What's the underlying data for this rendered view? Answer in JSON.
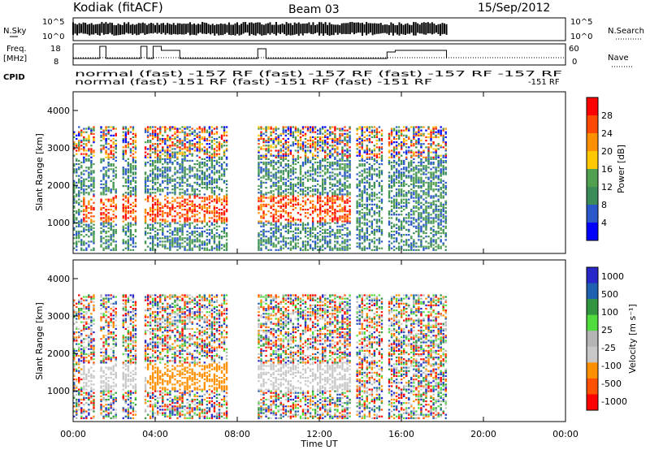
{
  "header": {
    "site": "Kodiak (fitACF)",
    "beam": "Beam 03",
    "date": "15/Sep/2012"
  },
  "strip": {
    "nsky_label": "N.Sky",
    "nsky_ticks": [
      "10^5",
      "10^0"
    ],
    "nsearch_label": "N.Search",
    "freq_label_1": "Freq.",
    "freq_label_2": "[MHz]",
    "freq_ticks": [
      "18",
      "8"
    ],
    "nave_label": "Nave",
    "nave_ticks": [
      "60",
      "0"
    ],
    "cpid_label": "CPID",
    "cpid_row1": "normal (fast) -157 RF (fast) -157 RF (fast) -157 RF -157 RF",
    "cpid_row2": "normal (fast) -151 RF (fast) -151 RF (fast) -151 RF",
    "cpid_right": "-151 RF"
  },
  "panels": {
    "power_colorbar_title": "Power [dB]",
    "velocity_colorbar_title": "Velocity [m s⁻¹]"
  },
  "colors": {
    "power": [
      "#0000ff",
      "#2a58c8",
      "#3c8c5a",
      "#50a050",
      "#ffc800",
      "#ff9000",
      "#ff4800",
      "#ff0000"
    ],
    "velocity": [
      "#ff0000",
      "#ff5000",
      "#ff9000",
      "#c8c8c8",
      "#b4b4b4",
      "#50dc3c",
      "#329640",
      "#2060b0",
      "#2828c8"
    ]
  },
  "chart_data": [
    {
      "type": "heatmap",
      "title": "Power",
      "xlabel": "Time UT",
      "ylabel": "Slant Range [km]",
      "x_ticks": [
        "00:00",
        "04:00",
        "08:00",
        "12:00",
        "16:00",
        "20:00",
        "00:00"
      ],
      "x_range_hours": [
        0,
        24
      ],
      "y_range_km": [
        180,
        4500
      ],
      "y_ticks": [
        1000,
        2000,
        3000,
        4000
      ],
      "data_end_hour": 18.2,
      "colorbar_ticks": [
        4,
        8,
        12,
        16,
        20,
        24,
        28
      ],
      "colorbar_label": "Power [dB]"
    },
    {
      "type": "heatmap",
      "title": "Velocity",
      "xlabel": "Time UT",
      "ylabel": "Slant Range [km]",
      "x_ticks": [
        "00:00",
        "04:00",
        "08:00",
        "12:00",
        "16:00",
        "20:00",
        "00:00"
      ],
      "x_range_hours": [
        0,
        24
      ],
      "y_range_km": [
        180,
        4500
      ],
      "y_ticks": [
        1000,
        2000,
        3000,
        4000
      ],
      "data_end_hour": 18.2,
      "colorbar_ticks": [
        "1000",
        "500",
        "100",
        "25",
        "-25",
        "-100",
        "-500",
        "-1000"
      ],
      "colorbar_label": "Velocity [m s⁻¹]"
    }
  ]
}
